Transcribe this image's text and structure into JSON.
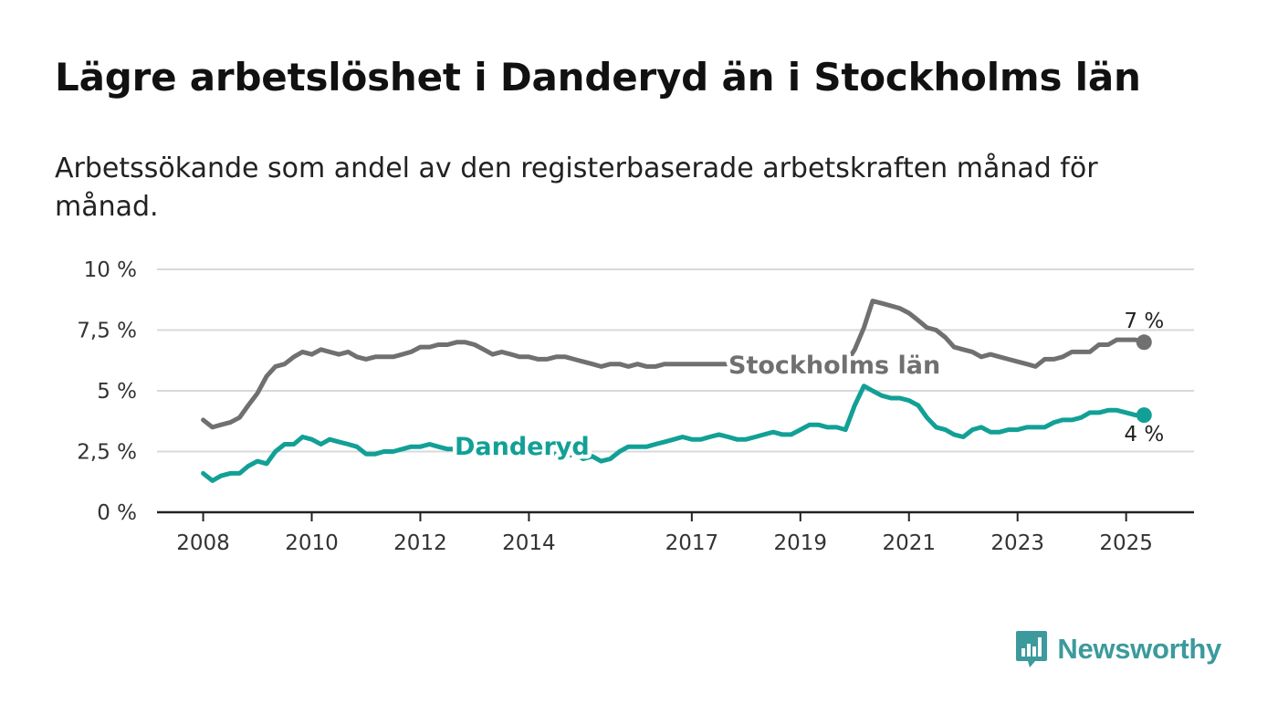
{
  "title": "Lägre arbetslöshet i Danderyd än i Stockholms län",
  "subtitle": "Arbetssökande som andel av den registerbaserade arbetskraften månad för månad.",
  "brand": {
    "name": "Newsworthy",
    "icon": "newsworthy-logo-icon"
  },
  "colors": {
    "stockholm": "#707070",
    "danderyd": "#12a096",
    "grid": "#d9d9d9",
    "axis": "#222222",
    "brand": "#3c9a9c"
  },
  "chart_data": {
    "type": "line",
    "x_ticks": [
      "2008",
      "2010",
      "2012",
      "2014",
      "2017",
      "2019",
      "2021",
      "2023",
      "2025"
    ],
    "x_tick_values": [
      2008,
      2010,
      2012,
      2014,
      2017,
      2019,
      2021,
      2023,
      2025
    ],
    "y_ticks": [
      "0 %",
      "2,5 %",
      "5 %",
      "7,5 %",
      "10 %"
    ],
    "y_tick_values": [
      0,
      2.5,
      5,
      7.5,
      10
    ],
    "xlim": [
      2007.15,
      2026.25
    ],
    "ylim": [
      0,
      10
    ],
    "grid": true,
    "series": [
      {
        "name": "Stockholms län",
        "end_label": "7 %",
        "x": [
          2008.0,
          2008.17,
          2008.33,
          2008.5,
          2008.67,
          2008.83,
          2009.0,
          2009.17,
          2009.33,
          2009.5,
          2009.67,
          2009.83,
          2010.0,
          2010.17,
          2010.33,
          2010.5,
          2010.67,
          2010.83,
          2011.0,
          2011.17,
          2011.33,
          2011.5,
          2011.67,
          2011.83,
          2012.0,
          2012.17,
          2012.33,
          2012.5,
          2012.67,
          2012.83,
          2013.0,
          2013.17,
          2013.33,
          2013.5,
          2013.67,
          2013.83,
          2014.0,
          2014.17,
          2014.33,
          2014.5,
          2014.67,
          2014.83,
          2015.0,
          2015.17,
          2015.33,
          2015.5,
          2015.67,
          2015.83,
          2016.0,
          2016.17,
          2016.33,
          2016.5,
          2016.67,
          2016.83,
          2017.0,
          2017.17,
          2017.33,
          2017.5,
          2017.67,
          2017.83,
          2018.0,
          2018.17,
          2018.33,
          2018.5,
          2018.67,
          2018.83,
          2019.0,
          2019.17,
          2019.33,
          2019.5,
          2019.67,
          2019.83,
          2020.0,
          2020.17,
          2020.33,
          2020.5,
          2020.67,
          2020.83,
          2021.0,
          2021.17,
          2021.33,
          2021.5,
          2021.67,
          2021.83,
          2022.0,
          2022.17,
          2022.33,
          2022.5,
          2022.67,
          2022.83,
          2023.0,
          2023.17,
          2023.33,
          2023.5,
          2023.67,
          2023.83,
          2024.0,
          2024.17,
          2024.33,
          2024.5,
          2024.67,
          2024.83,
          2025.0,
          2025.17,
          2025.33
        ],
        "y": [
          3.8,
          3.5,
          3.6,
          3.7,
          3.9,
          4.4,
          4.9,
          5.6,
          6.0,
          6.1,
          6.4,
          6.6,
          6.5,
          6.7,
          6.6,
          6.5,
          6.6,
          6.4,
          6.3,
          6.4,
          6.4,
          6.4,
          6.5,
          6.6,
          6.8,
          6.8,
          6.9,
          6.9,
          7.0,
          7.0,
          6.9,
          6.7,
          6.5,
          6.6,
          6.5,
          6.4,
          6.4,
          6.3,
          6.3,
          6.4,
          6.4,
          6.3,
          6.2,
          6.1,
          6.0,
          6.1,
          6.1,
          6.0,
          6.1,
          6.0,
          6.0,
          6.1,
          6.1,
          6.1,
          6.1,
          6.1,
          6.1,
          6.1,
          6.1,
          6.1,
          6.1,
          6.1,
          6.1,
          6.1,
          6.1,
          6.1,
          6.1,
          6.1,
          6.1,
          6.1,
          6.1,
          6.1,
          6.7,
          7.6,
          8.7,
          8.6,
          8.5,
          8.4,
          8.2,
          7.9,
          7.6,
          7.5,
          7.2,
          6.8,
          6.7,
          6.6,
          6.4,
          6.5,
          6.4,
          6.3,
          6.2,
          6.1,
          6.0,
          6.3,
          6.3,
          6.4,
          6.6,
          6.6,
          6.6,
          6.9,
          6.9,
          7.1,
          7.1,
          7.1,
          7.0
        ]
      },
      {
        "name": "Danderyd",
        "end_label": "4 %",
        "x": [
          2008.0,
          2008.17,
          2008.33,
          2008.5,
          2008.67,
          2008.83,
          2009.0,
          2009.17,
          2009.33,
          2009.5,
          2009.67,
          2009.83,
          2010.0,
          2010.17,
          2010.33,
          2010.5,
          2010.67,
          2010.83,
          2011.0,
          2011.17,
          2011.33,
          2011.5,
          2011.67,
          2011.83,
          2012.0,
          2012.17,
          2012.33,
          2012.5,
          2012.67,
          2012.83,
          2013.0,
          2013.17,
          2013.33,
          2013.5,
          2013.67,
          2013.83,
          2014.0,
          2014.17,
          2014.33,
          2014.5,
          2014.67,
          2014.83,
          2015.0,
          2015.17,
          2015.33,
          2015.5,
          2015.67,
          2015.83,
          2016.0,
          2016.17,
          2016.33,
          2016.5,
          2016.67,
          2016.83,
          2017.0,
          2017.17,
          2017.33,
          2017.5,
          2017.67,
          2017.83,
          2018.0,
          2018.17,
          2018.33,
          2018.5,
          2018.67,
          2018.83,
          2019.0,
          2019.17,
          2019.33,
          2019.5,
          2019.67,
          2019.83,
          2020.0,
          2020.17,
          2020.33,
          2020.5,
          2020.67,
          2020.83,
          2021.0,
          2021.17,
          2021.33,
          2021.5,
          2021.67,
          2021.83,
          2022.0,
          2022.17,
          2022.33,
          2022.5,
          2022.67,
          2022.83,
          2023.0,
          2023.17,
          2023.33,
          2023.5,
          2023.67,
          2023.83,
          2024.0,
          2024.17,
          2024.33,
          2024.5,
          2024.67,
          2024.83,
          2025.0,
          2025.17,
          2025.33
        ],
        "y": [
          1.6,
          1.3,
          1.5,
          1.6,
          1.6,
          1.9,
          2.1,
          2.0,
          2.5,
          2.8,
          2.8,
          3.1,
          3.0,
          2.8,
          3.0,
          2.9,
          2.8,
          2.7,
          2.4,
          2.4,
          2.5,
          2.5,
          2.6,
          2.7,
          2.7,
          2.8,
          2.7,
          2.6,
          2.6,
          2.5,
          2.5,
          2.4,
          2.4,
          2.3,
          2.4,
          2.4,
          2.4,
          2.3,
          2.4,
          2.4,
          2.3,
          2.4,
          2.2,
          2.3,
          2.1,
          2.2,
          2.5,
          2.7,
          2.7,
          2.7,
          2.8,
          2.9,
          3.0,
          3.1,
          3.0,
          3.0,
          3.1,
          3.2,
          3.1,
          3.0,
          3.0,
          3.1,
          3.2,
          3.3,
          3.2,
          3.2,
          3.4,
          3.6,
          3.6,
          3.5,
          3.5,
          3.4,
          4.4,
          5.2,
          5.0,
          4.8,
          4.7,
          4.7,
          4.6,
          4.4,
          3.9,
          3.5,
          3.4,
          3.2,
          3.1,
          3.4,
          3.5,
          3.3,
          3.3,
          3.4,
          3.4,
          3.5,
          3.5,
          3.5,
          3.7,
          3.8,
          3.8,
          3.9,
          4.1,
          4.1,
          4.2,
          4.2,
          4.1,
          4.0,
          4.0
        ]
      }
    ]
  }
}
